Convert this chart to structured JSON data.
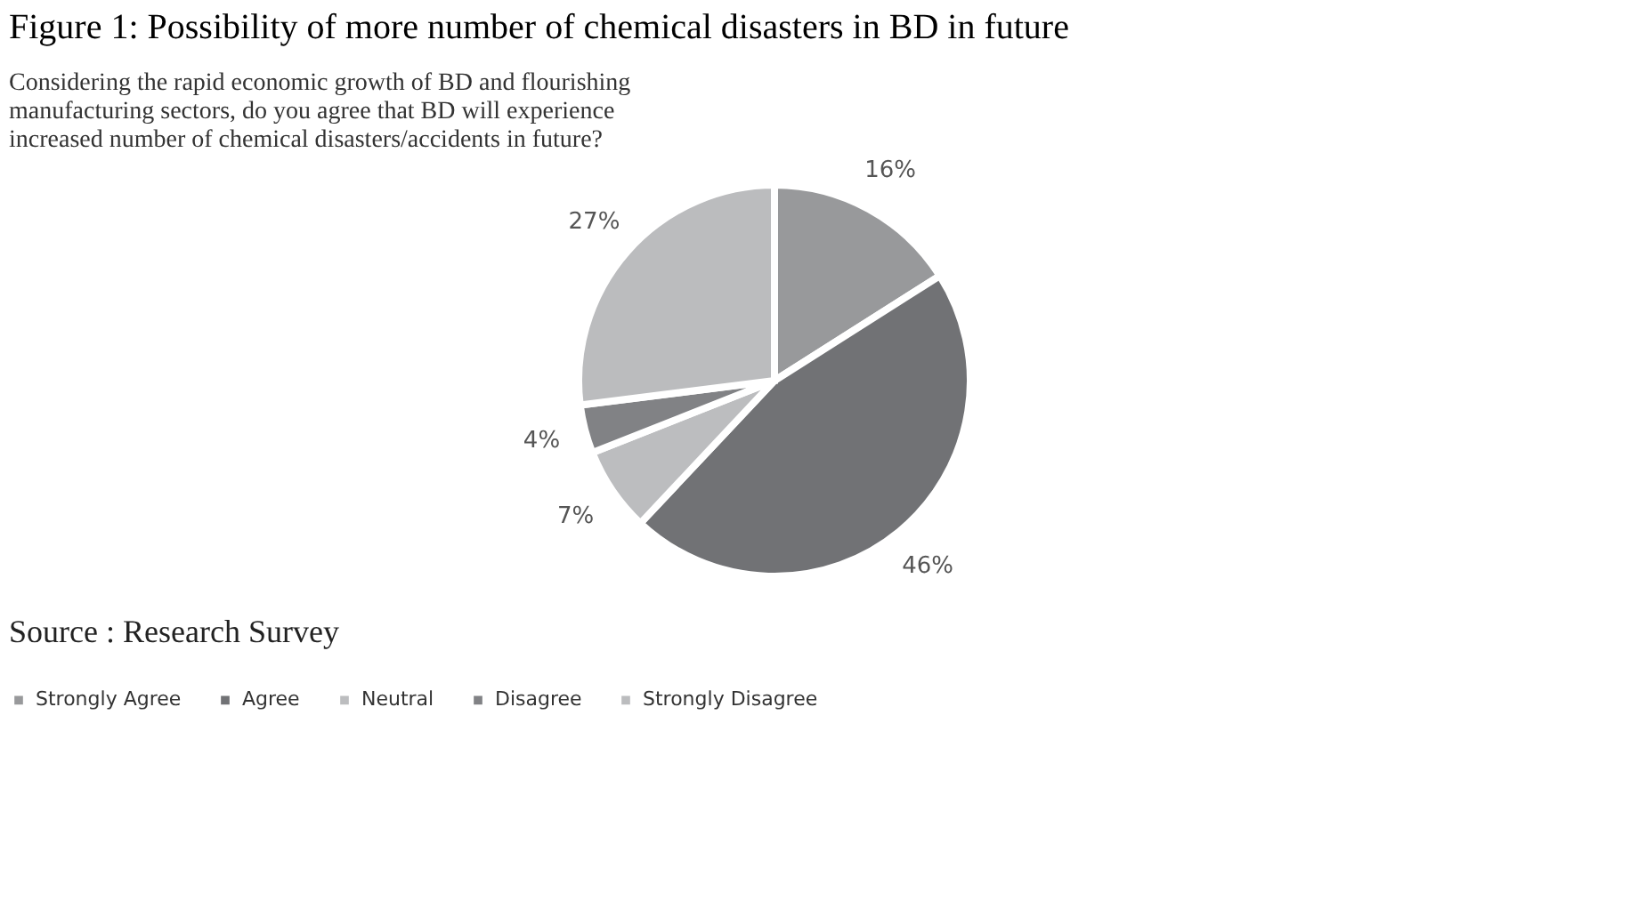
{
  "chart_data": {
    "type": "pie",
    "title": "Figure 1: Possibility of more number of chemical disasters in BD in future",
    "subtitle": "Considering the rapid economic growth of BD and flourishing manufacturing sectors, do you agree that BD will experience increased number of chemical disasters/accidents in future?",
    "categories": [
      "Strongly Agree",
      "Agree",
      "Neutral",
      "Disagree",
      "Strongly Disagree"
    ],
    "values": [
      16,
      46,
      7,
      4,
      27
    ],
    "value_labels": [
      "16%",
      "46%",
      "7%",
      "4%",
      "27%"
    ],
    "colors": [
      "#98999b",
      "#717275",
      "#bcbdbf",
      "#818285",
      "#bbbcbe"
    ],
    "legend": "bottom",
    "annotations": [
      "Source : Research Survey"
    ]
  }
}
